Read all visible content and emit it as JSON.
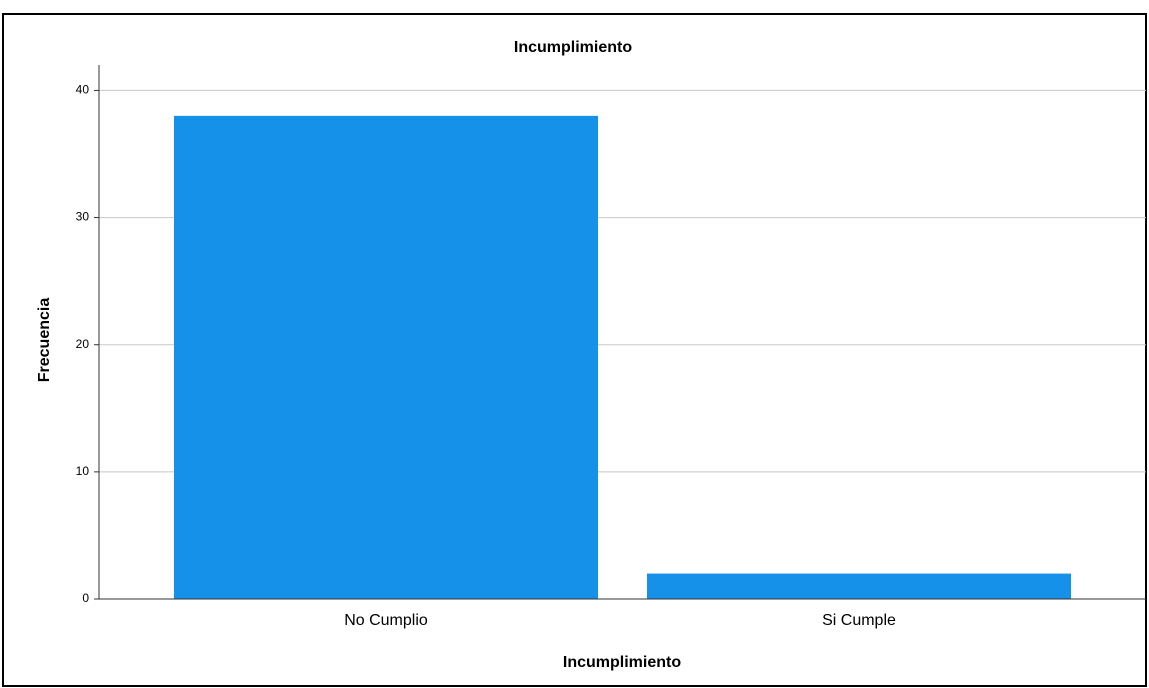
{
  "chart_data": {
    "type": "bar",
    "title": "Incumplimiento",
    "x_label": "Incumplimiento",
    "y_label": "Frecuencia",
    "categories": [
      "No Cumplio",
      "Si Cumple"
    ],
    "values": [
      38,
      2
    ],
    "color": "#1591ea",
    "ylim": [
      0,
      42
    ],
    "yticks": [
      0,
      10,
      20,
      30,
      40
    ],
    "grid": true
  }
}
